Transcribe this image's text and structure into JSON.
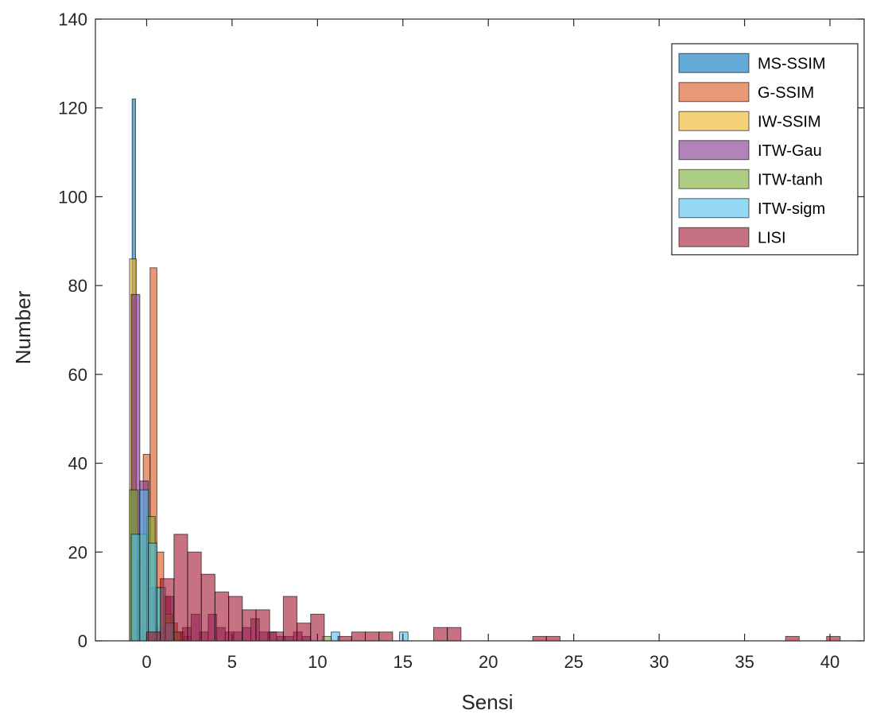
{
  "chart_data": {
    "type": "bar",
    "subtype": "overlapping histogram",
    "xlabel": "Sensi",
    "ylabel": "Number",
    "xlim": [
      -3,
      42
    ],
    "ylim": [
      0,
      140
    ],
    "x_ticks": [
      0,
      5,
      10,
      15,
      20,
      25,
      30,
      35,
      40
    ],
    "y_ticks": [
      0,
      20,
      40,
      60,
      80,
      100,
      120,
      140
    ],
    "grid": false,
    "legend_position": "top-right",
    "series": [
      {
        "name": "MS-SSIM",
        "color": "#0072BD",
        "bars": [
          {
            "x0": -0.85,
            "x1": -0.65,
            "value": 122
          },
          {
            "x0": -0.65,
            "x1": -0.45,
            "value": 6
          },
          {
            "x0": -0.45,
            "x1": -0.25,
            "value": 3
          },
          {
            "x0": -0.25,
            "x1": -0.05,
            "value": 2
          }
        ]
      },
      {
        "name": "G-SSIM",
        "color": "#D95319",
        "bars": [
          {
            "x0": -0.2,
            "x1": 0.2,
            "value": 42
          },
          {
            "x0": 0.2,
            "x1": 0.6,
            "value": 84
          },
          {
            "x0": 0.6,
            "x1": 1.0,
            "value": 20
          },
          {
            "x0": 1.0,
            "x1": 1.4,
            "value": 10
          },
          {
            "x0": 1.4,
            "x1": 1.8,
            "value": 4
          },
          {
            "x0": 1.8,
            "x1": 2.2,
            "value": 2
          },
          {
            "x0": 2.2,
            "x1": 2.6,
            "value": 1
          }
        ]
      },
      {
        "name": "IW-SSIM",
        "color": "#EDB120",
        "bars": [
          {
            "x0": -1.0,
            "x1": -0.6,
            "value": 86
          },
          {
            "x0": -0.6,
            "x1": -0.2,
            "value": 18
          },
          {
            "x0": -0.2,
            "x1": 0.2,
            "value": 8
          },
          {
            "x0": 0.2,
            "x1": 0.6,
            "value": 4
          },
          {
            "x0": 0.6,
            "x1": 1.0,
            "value": 2
          }
        ]
      },
      {
        "name": "ITW-Gau",
        "color": "#7E2F8E",
        "bars": [
          {
            "x0": -0.9,
            "x1": -0.4,
            "value": 78
          },
          {
            "x0": -0.4,
            "x1": 0.1,
            "value": 36
          },
          {
            "x0": 0.1,
            "x1": 0.6,
            "value": 12
          },
          {
            "x0": 0.6,
            "x1": 1.1,
            "value": 3
          },
          {
            "x0": 1.1,
            "x1": 1.6,
            "value": 10
          },
          {
            "x0": 1.6,
            "x1": 2.1,
            "value": 2
          },
          {
            "x0": 2.1,
            "x1": 2.6,
            "value": 3
          },
          {
            "x0": 2.6,
            "x1": 3.1,
            "value": 6
          },
          {
            "x0": 3.1,
            "x1": 3.6,
            "value": 2
          },
          {
            "x0": 3.6,
            "x1": 4.1,
            "value": 6
          },
          {
            "x0": 4.1,
            "x1": 4.6,
            "value": 3
          },
          {
            "x0": 4.6,
            "x1": 5.1,
            "value": 2
          },
          {
            "x0": 5.1,
            "x1": 5.6,
            "value": 2
          },
          {
            "x0": 5.6,
            "x1": 6.1,
            "value": 3
          },
          {
            "x0": 6.1,
            "x1": 6.6,
            "value": 5
          },
          {
            "x0": 6.6,
            "x1": 7.1,
            "value": 2
          },
          {
            "x0": 7.1,
            "x1": 7.6,
            "value": 2
          },
          {
            "x0": 7.6,
            "x1": 8.1,
            "value": 1
          },
          {
            "x0": 8.1,
            "x1": 8.6,
            "value": 1
          },
          {
            "x0": 8.6,
            "x1": 9.1,
            "value": 2
          },
          {
            "x0": 9.1,
            "x1": 9.6,
            "value": 1
          }
        ]
      },
      {
        "name": "ITW-tanh",
        "color": "#77AC30",
        "bars": [
          {
            "x0": -1.0,
            "x1": -0.5,
            "value": 34
          },
          {
            "x0": -0.5,
            "x1": 0.0,
            "value": 24
          },
          {
            "x0": 0.0,
            "x1": 0.5,
            "value": 28
          },
          {
            "x0": 0.5,
            "x1": 1.0,
            "value": 12
          },
          {
            "x0": 1.0,
            "x1": 1.5,
            "value": 6
          },
          {
            "x0": 1.5,
            "x1": 2.0,
            "value": 2
          },
          {
            "x0": 10.3,
            "x1": 10.8,
            "value": 1
          }
        ]
      },
      {
        "name": "ITW-sigm",
        "color": "#4DBEEE",
        "bars": [
          {
            "x0": -0.9,
            "x1": -0.4,
            "value": 24
          },
          {
            "x0": -0.4,
            "x1": 0.1,
            "value": 34
          },
          {
            "x0": 0.1,
            "x1": 0.6,
            "value": 22
          },
          {
            "x0": 0.6,
            "x1": 1.1,
            "value": 12
          },
          {
            "x0": 1.1,
            "x1": 1.6,
            "value": 4
          },
          {
            "x0": 10.8,
            "x1": 11.3,
            "value": 2
          },
          {
            "x0": 14.8,
            "x1": 15.3,
            "value": 2
          }
        ]
      },
      {
        "name": "LISI",
        "color": "#A2142F",
        "bars": [
          {
            "x0": 0.0,
            "x1": 0.8,
            "value": 2
          },
          {
            "x0": 0.8,
            "x1": 1.6,
            "value": 14
          },
          {
            "x0": 1.6,
            "x1": 2.4,
            "value": 24
          },
          {
            "x0": 2.4,
            "x1": 3.2,
            "value": 20
          },
          {
            "x0": 3.2,
            "x1": 4.0,
            "value": 15
          },
          {
            "x0": 4.0,
            "x1": 4.8,
            "value": 11
          },
          {
            "x0": 4.8,
            "x1": 5.6,
            "value": 10
          },
          {
            "x0": 5.6,
            "x1": 6.4,
            "value": 7
          },
          {
            "x0": 6.4,
            "x1": 7.2,
            "value": 7
          },
          {
            "x0": 7.2,
            "x1": 8.0,
            "value": 2
          },
          {
            "x0": 8.0,
            "x1": 8.8,
            "value": 10
          },
          {
            "x0": 8.8,
            "x1": 9.6,
            "value": 4
          },
          {
            "x0": 9.6,
            "x1": 10.4,
            "value": 6
          },
          {
            "x0": 11.2,
            "x1": 12.0,
            "value": 1
          },
          {
            "x0": 12.0,
            "x1": 12.8,
            "value": 2
          },
          {
            "x0": 12.8,
            "x1": 13.6,
            "value": 2
          },
          {
            "x0": 13.6,
            "x1": 14.4,
            "value": 2
          },
          {
            "x0": 16.8,
            "x1": 17.6,
            "value": 3
          },
          {
            "x0": 17.6,
            "x1": 18.4,
            "value": 3
          },
          {
            "x0": 22.6,
            "x1": 23.4,
            "value": 1
          },
          {
            "x0": 23.4,
            "x1": 24.2,
            "value": 1
          },
          {
            "x0": 37.4,
            "x1": 38.2,
            "value": 1
          },
          {
            "x0": 39.8,
            "x1": 40.6,
            "value": 1
          }
        ]
      }
    ]
  }
}
